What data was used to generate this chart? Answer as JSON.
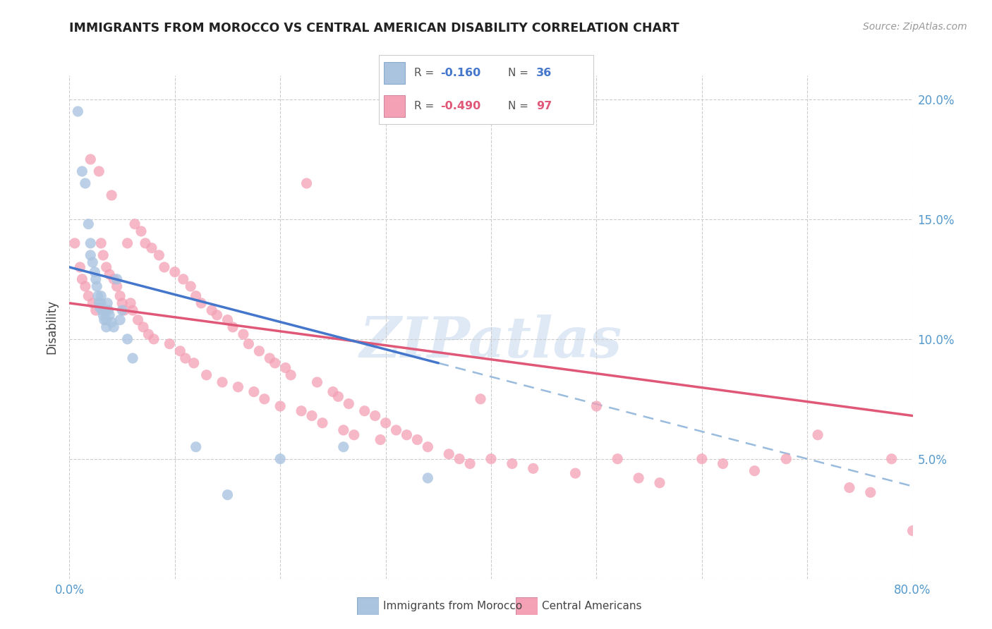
{
  "title": "IMMIGRANTS FROM MOROCCO VS CENTRAL AMERICAN DISABILITY CORRELATION CHART",
  "source": "Source: ZipAtlas.com",
  "ylabel": "Disability",
  "xlim": [
    0.0,
    0.8
  ],
  "ylim": [
    0.0,
    0.21
  ],
  "xticks": [
    0.0,
    0.1,
    0.2,
    0.3,
    0.4,
    0.5,
    0.6,
    0.7,
    0.8
  ],
  "xticklabels": [
    "0.0%",
    "",
    "",
    "",
    "",
    "",
    "",
    "",
    "80.0%"
  ],
  "yticks": [
    0.0,
    0.05,
    0.1,
    0.15,
    0.2
  ],
  "yticklabels": [
    "",
    "5.0%",
    "10.0%",
    "15.0%",
    "20.0%"
  ],
  "morocco_color": "#aac4e0",
  "central_color": "#f4a0b5",
  "morocco_R": -0.16,
  "morocco_N": 36,
  "central_R": -0.49,
  "central_N": 97,
  "morocco_line_color": "#4477cc",
  "central_line_color": "#e05878",
  "dashed_line_color": "#99bbdd",
  "watermark_text": "ZIPatlas",
  "legend_R_morocco": "-0.160",
  "legend_N_morocco": "36",
  "legend_R_central": "-0.490",
  "legend_N_central": "97",
  "morocco_scatter_x": [
    0.008,
    0.012,
    0.015,
    0.018,
    0.02,
    0.02,
    0.022,
    0.024,
    0.025,
    0.026,
    0.027,
    0.028,
    0.029,
    0.03,
    0.03,
    0.031,
    0.032,
    0.033,
    0.034,
    0.035,
    0.035,
    0.036,
    0.037,
    0.038,
    0.04,
    0.042,
    0.045,
    0.048,
    0.05,
    0.055,
    0.06,
    0.12,
    0.15,
    0.2,
    0.26,
    0.34
  ],
  "morocco_scatter_y": [
    0.195,
    0.17,
    0.165,
    0.148,
    0.14,
    0.135,
    0.132,
    0.128,
    0.125,
    0.122,
    0.118,
    0.115,
    0.113,
    0.118,
    0.115,
    0.112,
    0.11,
    0.108,
    0.112,
    0.108,
    0.105,
    0.115,
    0.112,
    0.11,
    0.107,
    0.105,
    0.125,
    0.108,
    0.112,
    0.1,
    0.092,
    0.055,
    0.035,
    0.05,
    0.055,
    0.042
  ],
  "central_scatter_x": [
    0.005,
    0.01,
    0.012,
    0.015,
    0.018,
    0.02,
    0.022,
    0.025,
    0.028,
    0.03,
    0.032,
    0.035,
    0.038,
    0.04,
    0.042,
    0.045,
    0.048,
    0.05,
    0.052,
    0.055,
    0.058,
    0.06,
    0.062,
    0.065,
    0.068,
    0.07,
    0.072,
    0.075,
    0.078,
    0.08,
    0.085,
    0.09,
    0.095,
    0.1,
    0.105,
    0.108,
    0.11,
    0.115,
    0.118,
    0.12,
    0.125,
    0.13,
    0.135,
    0.14,
    0.145,
    0.15,
    0.155,
    0.16,
    0.165,
    0.17,
    0.175,
    0.18,
    0.185,
    0.19,
    0.195,
    0.2,
    0.205,
    0.21,
    0.22,
    0.225,
    0.23,
    0.235,
    0.24,
    0.25,
    0.255,
    0.26,
    0.265,
    0.27,
    0.28,
    0.29,
    0.295,
    0.3,
    0.31,
    0.32,
    0.33,
    0.34,
    0.36,
    0.37,
    0.38,
    0.39,
    0.4,
    0.42,
    0.44,
    0.48,
    0.5,
    0.52,
    0.54,
    0.56,
    0.6,
    0.62,
    0.65,
    0.68,
    0.71,
    0.74,
    0.76,
    0.78,
    0.8
  ],
  "central_scatter_y": [
    0.14,
    0.13,
    0.125,
    0.122,
    0.118,
    0.175,
    0.115,
    0.112,
    0.17,
    0.14,
    0.135,
    0.13,
    0.127,
    0.16,
    0.125,
    0.122,
    0.118,
    0.115,
    0.112,
    0.14,
    0.115,
    0.112,
    0.148,
    0.108,
    0.145,
    0.105,
    0.14,
    0.102,
    0.138,
    0.1,
    0.135,
    0.13,
    0.098,
    0.128,
    0.095,
    0.125,
    0.092,
    0.122,
    0.09,
    0.118,
    0.115,
    0.085,
    0.112,
    0.11,
    0.082,
    0.108,
    0.105,
    0.08,
    0.102,
    0.098,
    0.078,
    0.095,
    0.075,
    0.092,
    0.09,
    0.072,
    0.088,
    0.085,
    0.07,
    0.165,
    0.068,
    0.082,
    0.065,
    0.078,
    0.076,
    0.062,
    0.073,
    0.06,
    0.07,
    0.068,
    0.058,
    0.065,
    0.062,
    0.06,
    0.058,
    0.055,
    0.052,
    0.05,
    0.048,
    0.075,
    0.05,
    0.048,
    0.046,
    0.044,
    0.072,
    0.05,
    0.042,
    0.04,
    0.05,
    0.048,
    0.045,
    0.05,
    0.06,
    0.038,
    0.036,
    0.05,
    0.02
  ]
}
